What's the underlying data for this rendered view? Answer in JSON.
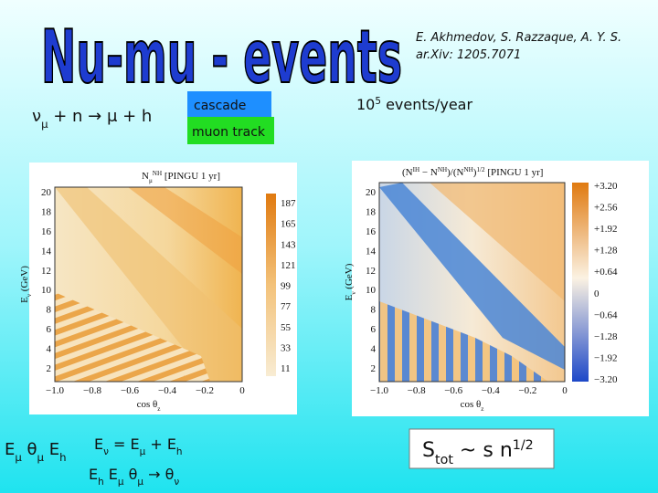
{
  "title": "Nu-mu - events",
  "citation": [
    "E. Akhmedov, S. Razzaque, A. Y. S.",
    "ar.Xiv: 1205.7071"
  ],
  "reaction": [
    {
      "text": "ν"
    },
    {
      "text": "μ",
      "script": "sub"
    },
    {
      "text": " + n → μ + h"
    }
  ],
  "legend": {
    "cascade": "cascade",
    "muon_track": "muon track"
  },
  "rate": [
    {
      "text": "10"
    },
    {
      "text": "5",
      "script": "sup"
    },
    {
      "text": " events/year"
    }
  ],
  "left_plot": {
    "title": [
      {
        "text": "N"
      },
      {
        "text": "μ",
        "script": "sub"
      },
      {
        "text": "NH",
        "script": "sup"
      },
      {
        "text": " [PINGU 1 yr]"
      }
    ],
    "y_label": [
      {
        "text": "E"
      },
      {
        "text": "ν",
        "script": "sub"
      },
      {
        "text": " (GeV)"
      }
    ],
    "x_label": [
      {
        "text": "cos θ"
      },
      {
        "text": "z",
        "script": "sub"
      }
    ],
    "yticks": [
      "20",
      "18",
      "16",
      "14",
      "12",
      "10",
      "8",
      "6",
      "4",
      "2"
    ],
    "xticks": [
      "−1.0",
      "−0.8",
      "−0.6",
      "−0.4",
      "−0.2",
      "0"
    ],
    "colorbar": [
      "187",
      "165",
      "143",
      "121",
      "99",
      "77",
      "55",
      "33",
      "11"
    ]
  },
  "right_plot": {
    "title": [
      {
        "text": "(N"
      },
      {
        "text": "IH",
        "script": "sup"
      },
      {
        "text": " − N"
      },
      {
        "text": "NH",
        "script": "sup"
      },
      {
        "text": ")/(N"
      },
      {
        "text": "NH",
        "script": "sup"
      },
      {
        "text": ")"
      },
      {
        "text": "1/2",
        "script": "sup"
      },
      {
        "text": " [PINGU 1 yr]"
      }
    ],
    "y_label": [
      {
        "text": "E"
      },
      {
        "text": "ν",
        "script": "sub"
      },
      {
        "text": " (GeV)"
      }
    ],
    "x_label": [
      {
        "text": "cos θ"
      },
      {
        "text": "z",
        "script": "sub"
      }
    ],
    "yticks": [
      "20",
      "18",
      "16",
      "14",
      "12",
      "10",
      "8",
      "6",
      "4",
      "2"
    ],
    "xticks": [
      "−1.0",
      "−0.8",
      "−0.6",
      "−0.4",
      "−0.2",
      "0"
    ],
    "colorbar": [
      "+3.20",
      "+2.56",
      "+1.92",
      "+1.28",
      "+0.64",
      "0",
      "−0.64",
      "−1.28",
      "−1.92",
      "−3.20"
    ]
  },
  "observables": [
    {
      "text": "E"
    },
    {
      "text": "μ",
      "script": "sub"
    },
    {
      "text": "  θ"
    },
    {
      "text": "μ",
      "script": "sub"
    },
    {
      "text": "  E"
    },
    {
      "text": "h",
      "script": "sub"
    }
  ],
  "energy_sum": [
    {
      "text": "E"
    },
    {
      "text": "ν",
      "script": "sub"
    },
    {
      "text": " = E"
    },
    {
      "text": "μ",
      "script": "sub"
    },
    {
      "text": " + E"
    },
    {
      "text": "h",
      "script": "sub"
    }
  ],
  "reconstruction": [
    {
      "text": "E"
    },
    {
      "text": "h",
      "script": "sub"
    },
    {
      "text": "  E"
    },
    {
      "text": "μ",
      "script": "sub"
    },
    {
      "text": "  θ"
    },
    {
      "text": "μ",
      "script": "sub"
    },
    {
      "text": " → θ"
    },
    {
      "text": "ν",
      "script": "sub"
    }
  ],
  "significance": [
    {
      "text": "S"
    },
    {
      "text": "tot",
      "script": "sub"
    },
    {
      "text": " ~  s n"
    },
    {
      "text": "1/2",
      "script": "sup"
    }
  ]
}
